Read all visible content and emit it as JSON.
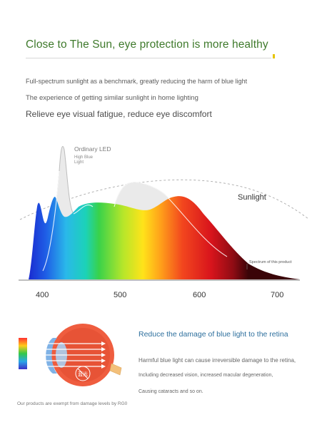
{
  "headline": "Close to The Sun, eye protection is more healthy",
  "subtitles": [
    "Full-spectrum sunlight as a benchmark, greatly reducing the harm of blue light",
    "The experience of getting similar sunlight in home lighting",
    "Relieve eye visual fatigue, reduce eye discomfort"
  ],
  "spectrum": {
    "led_label": "Ordinary LED",
    "blue_label_line1": "High Blue",
    "blue_label_line2": "Light",
    "sun_label": "Sunlight",
    "product_label": "Spectrum of this product",
    "ticks": [
      "400",
      "500",
      "600",
      "700"
    ]
  },
  "eye": {
    "title": "Reduce the damage of blue light to the retina",
    "desc1": "Harmful blue light can cause irreversible damage to the retina,",
    "desc2": "Including decreased vision, increased macular degeneration,",
    "desc3": "Causing cataracts and so on.",
    "badge": "蓝光"
  },
  "footnote": "Our products are exempt from damage levels by RG0",
  "colors": {
    "headline": "#3f7a2c",
    "accent": "#e6c400",
    "eye_title": "#2d6f9d"
  }
}
